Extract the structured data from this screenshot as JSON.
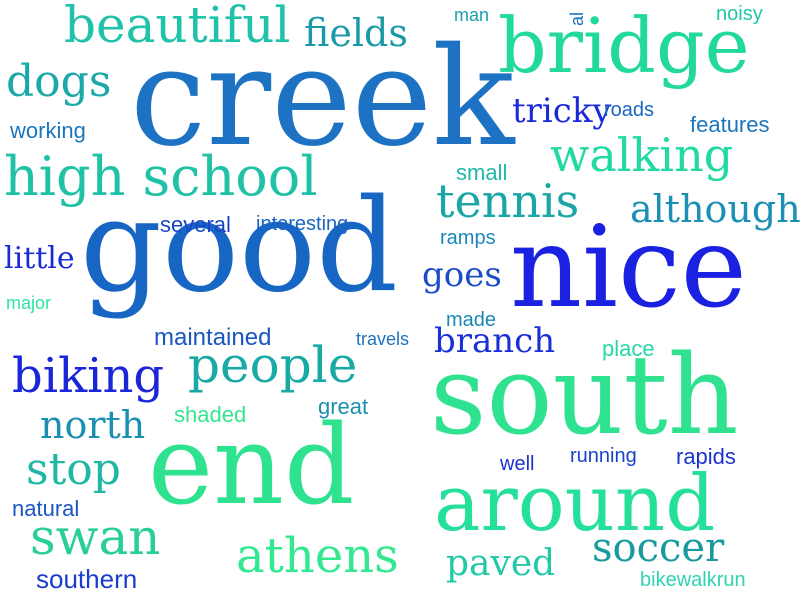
{
  "words": [
    {
      "text": "creek",
      "color": "#1d72c4"
    },
    {
      "text": "good",
      "color": "#1766c4"
    },
    {
      "text": "nice",
      "color": "#1a21e0"
    },
    {
      "text": "south",
      "color": "#2ee28f"
    },
    {
      "text": "end",
      "color": "#2ee28f"
    },
    {
      "text": "bridge",
      "color": "#21d99b"
    },
    {
      "text": "around",
      "color": "#24e09a"
    },
    {
      "text": "high school",
      "color": "#1fc2a4"
    },
    {
      "text": "beautiful",
      "color": "#20c2a9"
    },
    {
      "text": "fields",
      "color": "#1a99a6"
    },
    {
      "text": "dogs",
      "color": "#1ba8a8"
    },
    {
      "text": "walking",
      "color": "#22d9a3"
    },
    {
      "text": "tennis",
      "color": "#1aa6a6"
    },
    {
      "text": "although",
      "color": "#1b8fb4"
    },
    {
      "text": "people",
      "color": "#1aaaa6"
    },
    {
      "text": "biking",
      "color": "#1a26d8"
    },
    {
      "text": "athens",
      "color": "#33e891"
    },
    {
      "text": "swan",
      "color": "#2acf96"
    },
    {
      "text": "stop",
      "color": "#20b8a4"
    },
    {
      "text": "north",
      "color": "#1a8fb0"
    },
    {
      "text": "soccer",
      "color": "#189aa0"
    },
    {
      "text": "tricky",
      "color": "#1a2ad9"
    },
    {
      "text": "branch",
      "color": "#1a30d6"
    },
    {
      "text": "goes",
      "color": "#1a4cc8"
    },
    {
      "text": "paved",
      "color": "#22c8a8"
    },
    {
      "text": "southern",
      "color": "#1a3dcb"
    },
    {
      "text": "little",
      "color": "#1a2ad9"
    },
    {
      "text": "maintained",
      "color": "#1a55c0"
    },
    {
      "text": "working",
      "color": "#1a77bd"
    },
    {
      "text": "several",
      "color": "#1a44c8"
    },
    {
      "text": "interesting",
      "color": "#1a66c0"
    },
    {
      "text": "man",
      "color": "#1c9fa9"
    },
    {
      "text": "al",
      "color": "#1a72c0"
    },
    {
      "text": "noisy",
      "color": "#22c8a4"
    },
    {
      "text": "roads",
      "color": "#1a66c0"
    },
    {
      "text": "features",
      "color": "#1a77bd"
    },
    {
      "text": "small",
      "color": "#20b8a8"
    },
    {
      "text": "ramps",
      "color": "#1a88b6"
    },
    {
      "text": "major",
      "color": "#30e4a0"
    },
    {
      "text": "travels",
      "color": "#1a72bd"
    },
    {
      "text": "made",
      "color": "#1a88b6"
    },
    {
      "text": "place",
      "color": "#26d9a5"
    },
    {
      "text": "shaded",
      "color": "#36e68f"
    },
    {
      "text": "great",
      "color": "#1a8fb0"
    },
    {
      "text": "well",
      "color": "#1a33cf"
    },
    {
      "text": "running",
      "color": "#1a44c8"
    },
    {
      "text": "rapids",
      "color": "#1a33cf"
    },
    {
      "text": "natural",
      "color": "#1a55c4"
    },
    {
      "text": "bikewalkrun",
      "color": "#2fd4ae"
    }
  ]
}
